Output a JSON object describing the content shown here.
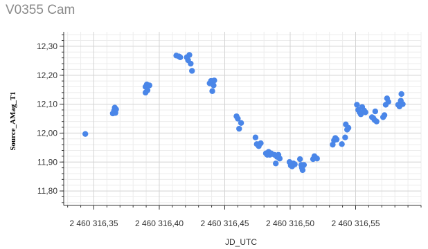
{
  "chart_data": {
    "type": "scatter",
    "title": "V0355 Cam",
    "xlabel": "JD_UTC",
    "ylabel": "Source_AMag_T1",
    "xlim": [
      2460316.327,
      2460316.6
    ],
    "ylim": [
      11.75,
      12.35
    ],
    "grid": true,
    "color": "#4a86e8",
    "x_ticks": [
      2460316.35,
      2460316.4,
      2460316.45,
      2460316.5,
      2460316.55
    ],
    "x_tick_labels": [
      "2 460 316,35",
      "2 460 316,40",
      "2 460 316,45",
      "2 460 316,50",
      "2 460 316,55"
    ],
    "y_ticks": [
      11.8,
      11.9,
      12.0,
      12.1,
      12.2,
      12.3
    ],
    "y_tick_labels": [
      "11,80",
      "11,90",
      "12,00",
      "12,10",
      "12,20",
      "12,30"
    ],
    "points": [
      [
        2460316.3435,
        11.997
      ],
      [
        2460316.3645,
        12.068
      ],
      [
        2460316.3655,
        12.078
      ],
      [
        2460316.366,
        12.088
      ],
      [
        2460316.3665,
        12.07
      ],
      [
        2460316.367,
        12.082
      ],
      [
        2460316.3895,
        12.16
      ],
      [
        2460316.3905,
        12.168
      ],
      [
        2460316.3895,
        12.14
      ],
      [
        2460316.391,
        12.148
      ],
      [
        2460316.3925,
        12.165
      ],
      [
        2460316.413,
        12.268
      ],
      [
        2460316.415,
        12.265
      ],
      [
        2460316.416,
        12.262
      ],
      [
        2460316.421,
        12.262
      ],
      [
        2460316.422,
        12.252
      ],
      [
        2460316.423,
        12.27
      ],
      [
        2460316.424,
        12.24
      ],
      [
        2460316.425,
        12.215
      ],
      [
        2460316.4385,
        12.172
      ],
      [
        2460316.4395,
        12.18
      ],
      [
        2460316.4405,
        12.178
      ],
      [
        2460316.4415,
        12.165
      ],
      [
        2460316.4405,
        12.145
      ],
      [
        2460316.442,
        12.182
      ],
      [
        2460316.459,
        12.058
      ],
      [
        2460316.46,
        12.05
      ],
      [
        2460316.461,
        12.015
      ],
      [
        2460316.4625,
        12.035
      ],
      [
        2460316.4735,
        11.985
      ],
      [
        2460316.4745,
        11.962
      ],
      [
        2460316.476,
        11.955
      ],
      [
        2460316.4775,
        11.965
      ],
      [
        2460316.4815,
        11.93
      ],
      [
        2460316.4825,
        11.925
      ],
      [
        2460316.4835,
        11.935
      ],
      [
        2460316.4845,
        11.925
      ],
      [
        2460316.4855,
        11.93
      ],
      [
        2460316.488,
        11.925
      ],
      [
        2460316.489,
        11.895
      ],
      [
        2460316.49,
        11.918
      ],
      [
        2460316.491,
        11.925
      ],
      [
        2460316.492,
        11.912
      ],
      [
        2460316.4995,
        11.9
      ],
      [
        2460316.5005,
        11.888
      ],
      [
        2460316.5015,
        11.885
      ],
      [
        2460316.5025,
        11.895
      ],
      [
        2460316.5035,
        11.892
      ],
      [
        2460316.5075,
        11.91
      ],
      [
        2460316.5085,
        11.89
      ],
      [
        2460316.509,
        11.88
      ],
      [
        2460316.5095,
        11.872
      ],
      [
        2460316.5105,
        11.89
      ],
      [
        2460316.5175,
        11.91
      ],
      [
        2460316.5185,
        11.92
      ],
      [
        2460316.5195,
        11.915
      ],
      [
        2460316.5205,
        11.912
      ],
      [
        2460316.5325,
        11.96
      ],
      [
        2460316.5335,
        11.975
      ],
      [
        2460316.5345,
        11.983
      ],
      [
        2460316.5355,
        11.978
      ],
      [
        2460316.5395,
        11.962
      ],
      [
        2460316.542,
        11.985
      ],
      [
        2460316.5425,
        12.03
      ],
      [
        2460316.5435,
        12.012
      ],
      [
        2460316.5445,
        12.018
      ],
      [
        2460316.551,
        12.098
      ],
      [
        2460316.552,
        12.08
      ],
      [
        2460316.553,
        12.072
      ],
      [
        2460316.554,
        12.065
      ],
      [
        2460316.555,
        12.09
      ],
      [
        2460316.5565,
        12.078
      ],
      [
        2460316.5575,
        12.072
      ],
      [
        2460316.5625,
        12.055
      ],
      [
        2460316.5635,
        12.052
      ],
      [
        2460316.5645,
        12.045
      ],
      [
        2460316.565,
        12.075
      ],
      [
        2460316.566,
        12.04
      ],
      [
        2460316.571,
        12.055
      ],
      [
        2460316.572,
        12.062
      ],
      [
        2460316.573,
        12.098
      ],
      [
        2460316.574,
        12.12
      ],
      [
        2460316.575,
        12.108
      ],
      [
        2460316.5825,
        12.098
      ],
      [
        2460316.5835,
        12.092
      ],
      [
        2460316.5845,
        12.112
      ],
      [
        2460316.585,
        12.135
      ],
      [
        2460316.586,
        12.1
      ]
    ]
  }
}
